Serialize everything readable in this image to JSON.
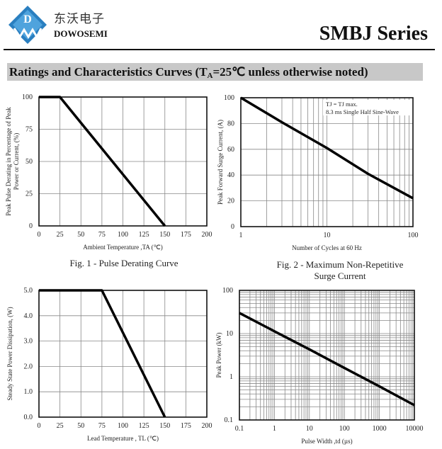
{
  "header": {
    "logo_text": "D W",
    "company_cn": "东沃电子",
    "company_en": "DOWOSEMI",
    "series": "SMBJ Series",
    "brand_color": "#2a7fc0"
  },
  "section": {
    "title_pre": "Ratings and Characteristics Curves (T",
    "title_sub": "A",
    "title_post": "=25℃ unless otherwise noted)"
  },
  "chart_data": [
    {
      "type": "line",
      "caption": "Fig. 1 - Pulse Derating Curve",
      "xlabel": "Ambient Temperature ,TA (℃)",
      "ylabel": "Peak Pulse Derating in Percentage of Peak Power or Current, (%)",
      "x_scale": "linear",
      "y_scale": "linear",
      "xlim": [
        0,
        200
      ],
      "ylim": [
        0,
        100
      ],
      "xticks": [
        0,
        25,
        50,
        75,
        100,
        125,
        150,
        175,
        200
      ],
      "yticks": [
        0,
        25,
        50,
        75,
        100
      ],
      "ytick_labels": [
        "0",
        "25",
        "50",
        "75",
        "100"
      ],
      "grid": true,
      "series": [
        {
          "x": [
            0,
            25,
            150
          ],
          "y": [
            100,
            100,
            0
          ]
        }
      ]
    },
    {
      "type": "line",
      "caption": "Fig. 2 - Maximum Non-Repetitive Surge Current",
      "caption_lines": [
        "Fig. 2 - Maximum Non-Repetitive",
        "Surge Current"
      ],
      "xlabel": "Number of Cycles at 60 Hz",
      "ylabel": "Peak Forward Surge Current, (A)",
      "x_scale": "log",
      "y_scale": "linear",
      "xlim": [
        1,
        100
      ],
      "ylim": [
        0,
        100
      ],
      "xticks": [
        1,
        10,
        100
      ],
      "yticks": [
        0,
        20,
        40,
        60,
        80,
        100
      ],
      "ytick_labels": [
        "0",
        "20",
        "40",
        "60",
        "80",
        "100"
      ],
      "grid": true,
      "annotations": [
        "TJ = TJ max.",
        "8.3 ms Single Half Sine-Wave"
      ],
      "series": [
        {
          "x": [
            1,
            3,
            10,
            30,
            100
          ],
          "y": [
            100,
            81,
            61,
            41,
            22
          ]
        }
      ]
    },
    {
      "type": "line",
      "caption": "",
      "xlabel": "Lead Temperature , TL (℃)",
      "ylabel": "Steady State Power Dissipation, (W)",
      "x_scale": "linear",
      "y_scale": "linear",
      "xlim": [
        0,
        200
      ],
      "ylim": [
        0,
        5
      ],
      "xticks": [
        0,
        25,
        50,
        75,
        100,
        125,
        150,
        175,
        200
      ],
      "yticks": [
        0,
        1,
        2,
        3,
        4,
        5
      ],
      "ytick_labels": [
        "0.0",
        "1.0",
        "2.0",
        "3.0",
        "4.0",
        "5.0"
      ],
      "grid": true,
      "series": [
        {
          "x": [
            0,
            75,
            150
          ],
          "y": [
            5,
            5,
            0
          ]
        }
      ]
    },
    {
      "type": "line",
      "caption": "",
      "xlabel": "Pulse Width ,td (µs)",
      "ylabel": "Peak Power (kW)",
      "x_scale": "log",
      "y_scale": "log",
      "xlim": [
        0.1,
        10000
      ],
      "ylim": [
        0.1,
        100
      ],
      "xticks": [
        0.1,
        1,
        10,
        100,
        1000,
        10000
      ],
      "xtick_labels": [
        "0.1",
        "1",
        "10",
        "100",
        "1000",
        "10000"
      ],
      "yticks": [
        0.1,
        1,
        10,
        100
      ],
      "ytick_labels": [
        "0.1",
        "1",
        "10",
        "100"
      ],
      "grid": true,
      "series": [
        {
          "x": [
            0.1,
            1,
            10,
            100,
            1000,
            10000
          ],
          "y": [
            30,
            11.3,
            4.3,
            1.6,
            0.6,
            0.22
          ]
        }
      ]
    }
  ]
}
